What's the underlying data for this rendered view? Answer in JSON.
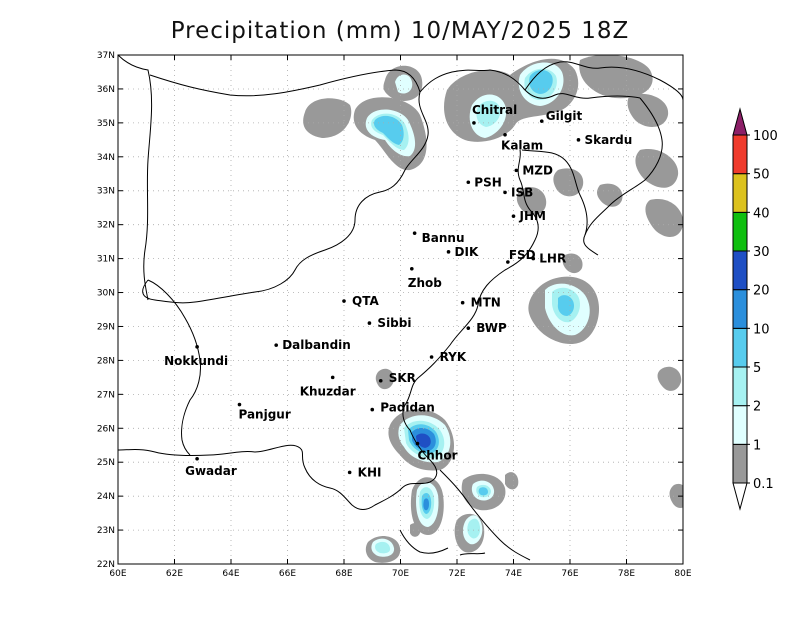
{
  "title": "Precipitation (mm) 10/MAY/2025 18Z",
  "map": {
    "lon_range": [
      60,
      80
    ],
    "lat_range": [
      22,
      37
    ],
    "x_ticks": [
      "60E",
      "62E",
      "64E",
      "66E",
      "68E",
      "70E",
      "72E",
      "74E",
      "76E",
      "78E",
      "80E"
    ],
    "y_ticks": [
      "22N",
      "23N",
      "24N",
      "25N",
      "26N",
      "27N",
      "28N",
      "29N",
      "30N",
      "31N",
      "32N",
      "33N",
      "34N",
      "35N",
      "36N",
      "37N"
    ],
    "grid": "dotted"
  },
  "cities": [
    {
      "name": "Chitral",
      "lon": 72.6,
      "lat": 35.0
    },
    {
      "name": "Gilgit",
      "lon": 75.0,
      "lat": 35.05
    },
    {
      "name": "Kalam",
      "lon": 73.7,
      "lat": 34.65
    },
    {
      "name": "Skardu",
      "lon": 76.3,
      "lat": 34.5
    },
    {
      "name": "MZD",
      "lon": 74.1,
      "lat": 33.6
    },
    {
      "name": "PSH",
      "lon": 72.4,
      "lat": 33.25
    },
    {
      "name": "ISB",
      "lon": 73.7,
      "lat": 32.95
    },
    {
      "name": "JHM",
      "lon": 74.0,
      "lat": 32.25
    },
    {
      "name": "Bannu",
      "lon": 70.5,
      "lat": 31.75
    },
    {
      "name": "DIK",
      "lon": 71.7,
      "lat": 31.2
    },
    {
      "name": "FSD",
      "lon": 73.8,
      "lat": 30.9
    },
    {
      "name": "LHR",
      "lon": 74.7,
      "lat": 31.0
    },
    {
      "name": "Zhob",
      "lon": 70.4,
      "lat": 30.7
    },
    {
      "name": "QTA",
      "lon": 68.0,
      "lat": 29.75
    },
    {
      "name": "MTN",
      "lon": 72.2,
      "lat": 29.7
    },
    {
      "name": "Sibbi",
      "lon": 68.9,
      "lat": 29.1
    },
    {
      "name": "BWP",
      "lon": 72.4,
      "lat": 28.95
    },
    {
      "name": "Nokkundi",
      "lon": 62.8,
      "lat": 28.4
    },
    {
      "name": "Dalbandin",
      "lon": 65.6,
      "lat": 28.45
    },
    {
      "name": "RYK",
      "lon": 71.1,
      "lat": 28.1
    },
    {
      "name": "SKR",
      "lon": 69.3,
      "lat": 27.4
    },
    {
      "name": "Khuzdar",
      "lon": 67.6,
      "lat": 27.5
    },
    {
      "name": "Padidan",
      "lon": 69.0,
      "lat": 26.55
    },
    {
      "name": "Panjgur",
      "lon": 64.3,
      "lat": 26.7
    },
    {
      "name": "Chhor",
      "lon": 70.6,
      "lat": 25.55
    },
    {
      "name": "KHI",
      "lon": 68.2,
      "lat": 24.7
    },
    {
      "name": "Gwadar",
      "lon": 62.8,
      "lat": 25.1
    }
  ],
  "colorbar": {
    "levels": [
      "0.1",
      "1",
      "2",
      "5",
      "10",
      "20",
      "30",
      "40",
      "50",
      "100"
    ],
    "colors": [
      "#999999",
      "#e0ffff",
      "#a6f1f1",
      "#57ccee",
      "#2b8fdc",
      "#1f4fc4",
      "#0fbf0f",
      "#dcc21e",
      "#ef3b2c",
      "#8c1f67"
    ]
  },
  "precip_cells": [
    {
      "lon": 73.1,
      "lat": 35.4,
      "level": 3
    },
    {
      "lon": 74.9,
      "lat": 36.3,
      "level": 3
    },
    {
      "lon": 69.6,
      "lat": 34.9,
      "level": 2
    },
    {
      "lon": 71.3,
      "lat": 25.8,
      "level": 5
    },
    {
      "lon": 71.0,
      "lat": 23.8,
      "level": 2
    },
    {
      "lon": 72.5,
      "lat": 23.0,
      "level": 2
    },
    {
      "lon": 73.0,
      "lat": 24.0,
      "level": 2
    },
    {
      "lon": 76.0,
      "lat": 29.5,
      "level": 2
    },
    {
      "lon": 69.4,
      "lat": 22.5,
      "level": 2
    }
  ]
}
